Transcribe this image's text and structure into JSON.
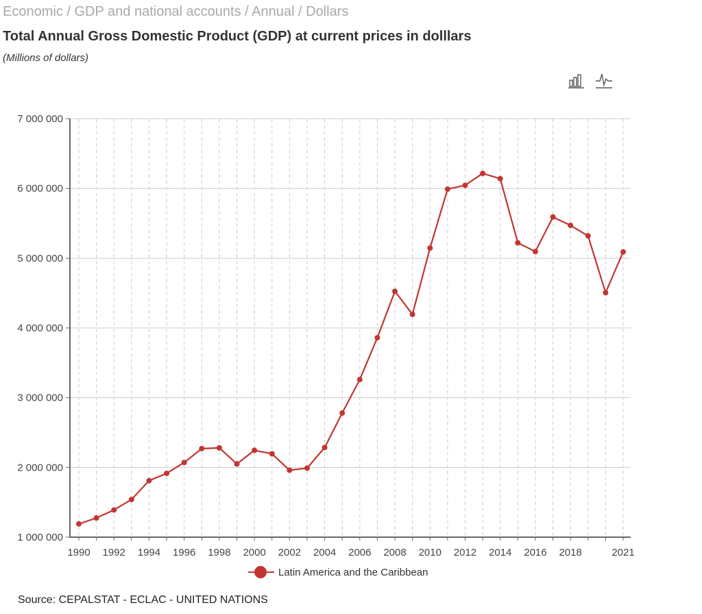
{
  "breadcrumb": "Economic / GDP and national accounts / Annual / Dollars",
  "title": "Total Annual Gross Domestic Product (GDP) at current prices in dolllars",
  "subtitle": "(Millions of dollars)",
  "toolbar": {
    "bar_icon": "bar-chart-icon",
    "line_icon": "line-chart-icon"
  },
  "legend_label": "Latin America and the Caribbean",
  "source": "Source: CEPALSTAT - ECLAC - UNITED NATIONS",
  "colors": {
    "series": "#c23531",
    "grid": "#cccccc",
    "axis": "#666666"
  },
  "chart_data": {
    "type": "line",
    "title": "Total Annual Gross Domestic Product (GDP) at current prices in dolllars",
    "ylabel": "Millions of dollars",
    "xlabel": "",
    "ylim": [
      1000000,
      7000000
    ],
    "yticks": [
      1000000,
      2000000,
      3000000,
      4000000,
      5000000,
      6000000,
      7000000
    ],
    "ytick_labels": [
      "1 000 000",
      "2 000 000",
      "3 000 000",
      "4 000 000",
      "5 000 000",
      "6 000 000",
      "7 000 000"
    ],
    "xtick_labels": [
      "1990",
      "1992",
      "1994",
      "1996",
      "1998",
      "2000",
      "2002",
      "2004",
      "2006",
      "2008",
      "2010",
      "2012",
      "2014",
      "2016",
      "2018",
      "2021"
    ],
    "grid": true,
    "legend": "bottom-center",
    "x": [
      1990,
      1991,
      1992,
      1993,
      1994,
      1995,
      1996,
      1997,
      1998,
      1999,
      2000,
      2001,
      2002,
      2003,
      2004,
      2005,
      2006,
      2007,
      2008,
      2009,
      2010,
      2011,
      2012,
      2013,
      2014,
      2015,
      2016,
      2017,
      2018,
      2019,
      2020,
      2021
    ],
    "series": [
      {
        "name": "Latin America and the Caribbean",
        "values": [
          1190000,
          1275000,
          1390000,
          1540000,
          1810000,
          1915000,
          2070000,
          2270000,
          2280000,
          2050000,
          2245000,
          2195000,
          1960000,
          1990000,
          2285000,
          2780000,
          3260000,
          3860000,
          4525000,
          4195000,
          5145000,
          5990000,
          6045000,
          6215000,
          6140000,
          5220000,
          5095000,
          5590000,
          5470000,
          5320000,
          4505000,
          5090000
        ]
      }
    ]
  }
}
